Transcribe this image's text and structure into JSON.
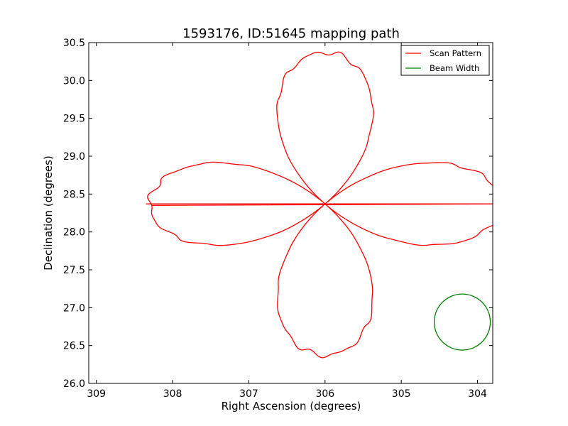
{
  "chart_data": {
    "type": "line",
    "title": "1593176, ID:51645 mapping path",
    "xlabel": "Right Ascension (degrees)",
    "ylabel": "Declination (degrees)",
    "xlim": [
      309.1,
      303.8
    ],
    "ylim": [
      26.0,
      30.5
    ],
    "x_inverted": true,
    "xticks": [
      309,
      308,
      307,
      306,
      305,
      304
    ],
    "yticks": [
      26.0,
      26.5,
      27.0,
      27.5,
      28.0,
      28.5,
      29.0,
      29.5,
      30.0,
      30.5
    ],
    "xtick_labels": [
      "309",
      "308",
      "307",
      "306",
      "305",
      "304"
    ],
    "ytick_labels": [
      "26.0",
      "26.5",
      "27.0",
      "27.5",
      "28.0",
      "28.5",
      "29.0",
      "29.5",
      "30.0",
      "30.5"
    ],
    "grid": false,
    "legend_position": "top-right",
    "series": [
      {
        "name": "Scan Pattern",
        "color": "#ff0000",
        "pattern": "four-petal rosette",
        "center": [
          306.0,
          28.37
        ],
        "outer_radius_ra": 2.3,
        "outer_radius_dec": 2.0,
        "x_start": [
          308.35,
          308.28
        ],
        "y_start": [
          28.37,
          28.35
        ]
      },
      {
        "name": "Beam Width",
        "color": "#008000",
        "pattern": "circle",
        "center": [
          304.2,
          26.81
        ],
        "radius": 0.37
      }
    ]
  }
}
